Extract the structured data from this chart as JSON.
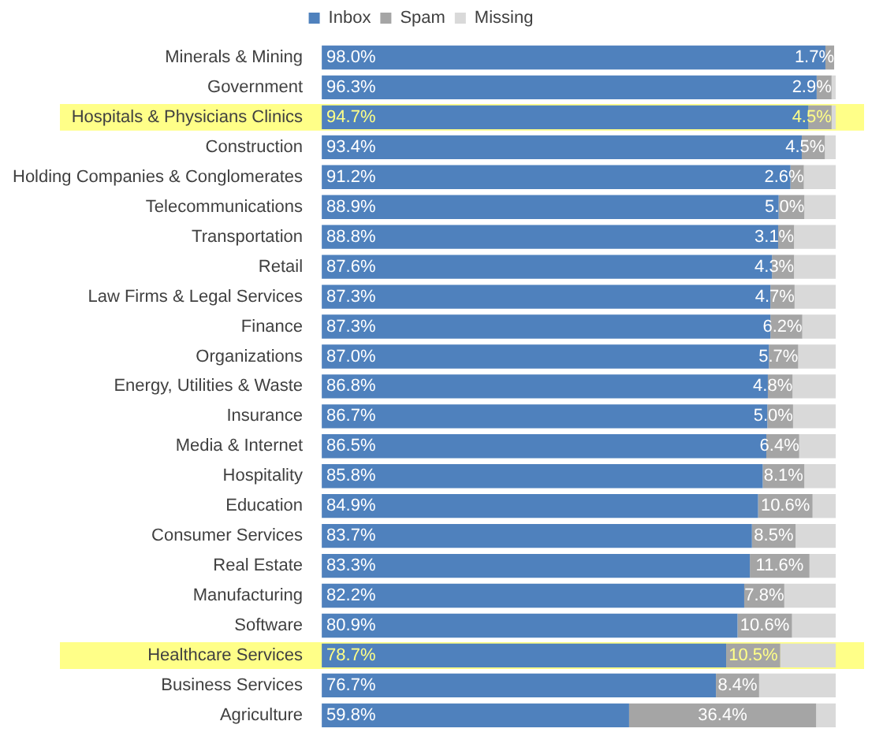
{
  "chart_data": {
    "type": "bar",
    "orientation": "horizontal",
    "stacked": true,
    "legend": "top",
    "tick_labels": "y",
    "xlim": [
      0,
      100
    ],
    "categories": [
      "Minerals & Mining",
      "Government",
      "Hospitals & Physicians Clinics",
      "Construction",
      "Holding Companies & Conglomerates",
      "Telecommunications",
      "Transportation",
      "Retail",
      "Law Firms & Legal Services",
      "Finance",
      "Organizations",
      "Energy, Utilities & Waste",
      "Insurance",
      "Media & Internet",
      "Hospitality",
      "Education",
      "Consumer Services",
      "Real Estate",
      "Manufacturing",
      "Software",
      "Healthcare Services",
      "Business Services",
      "Agriculture"
    ],
    "series": [
      {
        "name": "Inbox",
        "color": "#4f81bd",
        "values": [
          98.0,
          96.3,
          94.7,
          93.4,
          91.2,
          88.9,
          88.8,
          87.6,
          87.3,
          87.3,
          87.0,
          86.8,
          86.7,
          86.5,
          85.8,
          84.9,
          83.7,
          83.3,
          82.2,
          80.9,
          78.7,
          76.7,
          59.8
        ],
        "value_labels": [
          "98.0%",
          "96.3%",
          "94.7%",
          "93.4%",
          "91.2%",
          "88.9%",
          "88.8%",
          "87.6%",
          "87.3%",
          "87.3%",
          "87.0%",
          "86.8%",
          "86.7%",
          "86.5%",
          "85.8%",
          "84.9%",
          "83.7%",
          "83.3%",
          "82.2%",
          "80.9%",
          "78.7%",
          "76.7%",
          "59.8%"
        ]
      },
      {
        "name": "Spam",
        "color": "#a5a5a5",
        "values": [
          1.7,
          2.9,
          4.5,
          4.5,
          2.6,
          5.0,
          3.1,
          4.3,
          4.7,
          6.2,
          5.7,
          4.8,
          5.0,
          6.4,
          8.1,
          10.6,
          8.5,
          11.6,
          7.8,
          10.6,
          10.5,
          8.4,
          36.4
        ],
        "value_labels": [
          "1.7%",
          "2.9%",
          "4.5%",
          "4.5%",
          "2.6%",
          "5.0%",
          "3.1%",
          "4.3%",
          "4.7%",
          "6.2%",
          "5.7%",
          "4.8%",
          "5.0%",
          "6.4%",
          "8.1%",
          "10.6%",
          "8.5%",
          "11.6%",
          "7.8%",
          "10.6%",
          "10.5%",
          "8.4%",
          "36.4%"
        ]
      },
      {
        "name": "Missing",
        "color": "#d9d9d9",
        "values": [
          null,
          0.8,
          0.8,
          2.1,
          6.2,
          6.1,
          8.1,
          8.1,
          8.0,
          6.5,
          7.3,
          8.4,
          8.3,
          7.1,
          6.1,
          4.5,
          7.8,
          5.1,
          10.0,
          8.5,
          10.8,
          14.9,
          3.8
        ]
      }
    ],
    "bands": [
      {
        "axis": "y",
        "from": "Hospitals & Physicians Clinics",
        "to": "Hospitals & Physicians Clinics",
        "color": "#ffff88"
      },
      {
        "axis": "y",
        "from": "Healthcare Services",
        "to": "Healthcare Services",
        "color": "#ffff88"
      }
    ]
  }
}
